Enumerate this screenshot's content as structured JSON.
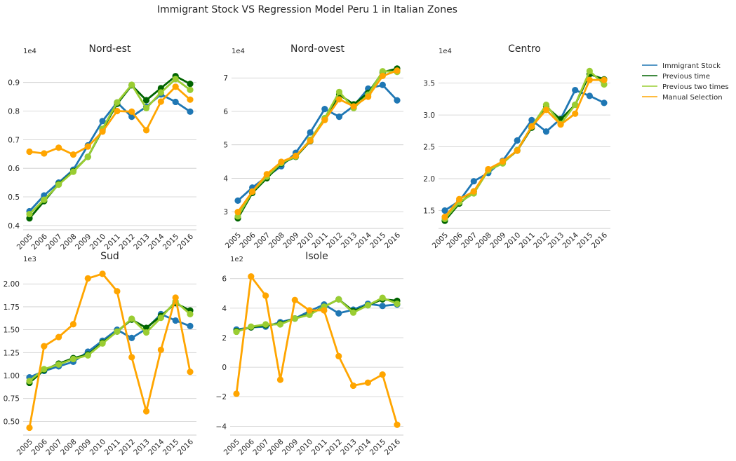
{
  "title": "Immigrant Stock VS Regression Model Peru 1 in Italian Zones",
  "legend": {
    "placement": "right",
    "entries": [
      {
        "label": "Immigrant Stock",
        "color": "#1f77b4"
      },
      {
        "label": "Previous time",
        "color": "#006400"
      },
      {
        "label": "Previous two times",
        "color": "#9acd32"
      },
      {
        "label": "Manual Selection",
        "color": "#ffa500"
      }
    ]
  },
  "chart_data": [
    {
      "type": "line",
      "title": "Nord-est",
      "multiplier": "1e4",
      "grid": "y",
      "x": [
        "2005",
        "2006",
        "2007",
        "2008",
        "2009",
        "2010",
        "2011",
        "2012",
        "2013",
        "2014",
        "2015",
        "2016"
      ],
      "ylim": [
        0.385,
        0.98
      ],
      "yticks": [
        0.4,
        0.5,
        0.6,
        0.7,
        0.8,
        0.9
      ],
      "ytick_labels": [
        "0.4",
        "0.5",
        "0.6",
        "0.7",
        "0.8",
        "0.9"
      ],
      "series": [
        {
          "name": "Immigrant Stock",
          "color": "#1f77b4",
          "values": [
            0.45,
            0.505,
            0.55,
            0.595,
            0.68,
            0.765,
            0.83,
            0.78,
            0.815,
            0.858,
            0.832,
            0.798
          ]
        },
        {
          "name": "Previous time",
          "color": "#006400",
          "values": [
            0.425,
            0.485,
            0.545,
            0.59,
            0.64,
            0.735,
            0.825,
            0.89,
            0.838,
            0.88,
            0.922,
            0.895
          ]
        },
        {
          "name": "Previous two times",
          "color": "#9acd32",
          "values": [
            0.44,
            0.49,
            0.543,
            0.588,
            0.64,
            0.738,
            0.83,
            0.892,
            0.81,
            0.865,
            0.912,
            0.874
          ]
        },
        {
          "name": "Manual Selection",
          "color": "#ffa500",
          "values": [
            0.658,
            0.652,
            0.672,
            0.648,
            0.676,
            0.728,
            0.8,
            0.798,
            0.733,
            0.833,
            0.885,
            0.84
          ]
        }
      ]
    },
    {
      "type": "line",
      "title": "Nord-ovest",
      "multiplier": "1e4",
      "grid": "y",
      "x": [
        "2005",
        "2006",
        "2007",
        "2008",
        "2009",
        "2010",
        "2011",
        "2012",
        "2013",
        "2014",
        "2015",
        "2016"
      ],
      "ylim": [
        2.5,
        7.55
      ],
      "yticks": [
        3,
        4,
        5,
        6,
        7
      ],
      "ytick_labels": [
        "3",
        "4",
        "5",
        "6",
        "7"
      ],
      "series": [
        {
          "name": "Immigrant Stock",
          "color": "#1f77b4",
          "values": [
            3.33,
            3.72,
            4.05,
            4.36,
            4.76,
            5.37,
            6.07,
            5.84,
            6.16,
            6.68,
            6.79,
            6.33
          ]
        },
        {
          "name": "Previous time",
          "color": "#006400",
          "values": [
            2.8,
            3.56,
            4.0,
            4.44,
            4.64,
            5.11,
            5.77,
            6.5,
            6.21,
            6.55,
            7.17,
            7.28
          ]
        },
        {
          "name": "Previous two times",
          "color": "#9acd32",
          "values": [
            2.86,
            3.6,
            4.05,
            4.46,
            4.65,
            5.15,
            5.8,
            6.58,
            6.1,
            6.5,
            7.2,
            7.18
          ]
        },
        {
          "name": "Manual Selection",
          "color": "#ffa500",
          "values": [
            2.99,
            3.6,
            4.12,
            4.49,
            4.67,
            5.12,
            5.74,
            6.36,
            6.15,
            6.44,
            7.06,
            7.22
          ]
        }
      ]
    },
    {
      "type": "line",
      "title": "Centro",
      "multiplier": "1e4",
      "grid": "y",
      "x": [
        "2005",
        "2006",
        "2007",
        "2008",
        "2009",
        "2010",
        "2011",
        "2012",
        "2013",
        "2014",
        "2015",
        "2016"
      ],
      "ylim": [
        1.22,
        3.87
      ],
      "yticks": [
        1.5,
        2.0,
        2.5,
        3.0,
        3.5
      ],
      "ytick_labels": [
        "1.5",
        "2.0",
        "2.5",
        "3.0",
        "3.5"
      ],
      "series": [
        {
          "name": "Immigrant Stock",
          "color": "#1f77b4",
          "values": [
            1.5,
            1.65,
            1.96,
            2.09,
            2.28,
            2.6,
            2.92,
            2.74,
            2.94,
            3.39,
            3.3,
            3.19
          ]
        },
        {
          "name": "Previous time",
          "color": "#006400",
          "values": [
            1.34,
            1.61,
            1.8,
            2.13,
            2.25,
            2.44,
            2.8,
            3.13,
            2.93,
            3.16,
            3.64,
            3.56
          ]
        },
        {
          "name": "Previous two times",
          "color": "#9acd32",
          "values": [
            1.37,
            1.63,
            1.77,
            2.13,
            2.24,
            2.45,
            2.82,
            3.16,
            2.86,
            3.16,
            3.69,
            3.48
          ]
        },
        {
          "name": "Manual Selection",
          "color": "#ffa500",
          "values": [
            1.4,
            1.68,
            1.8,
            2.15,
            2.27,
            2.44,
            2.82,
            3.08,
            2.85,
            3.02,
            3.55,
            3.55
          ]
        }
      ]
    },
    {
      "type": "line",
      "title": "Sud",
      "multiplier": "1e3",
      "grid": "y",
      "x": [
        "2005",
        "2006",
        "2007",
        "2008",
        "2009",
        "2010",
        "2011",
        "2012",
        "2013",
        "2014",
        "2015",
        "2016"
      ],
      "ylim": [
        0.35,
        2.17
      ],
      "yticks": [
        0.5,
        0.75,
        1.0,
        1.25,
        1.5,
        1.75,
        2.0
      ],
      "ytick_labels": [
        "0.50",
        "0.75",
        "1.00",
        "1.25",
        "1.50",
        "1.75",
        "2.00"
      ],
      "series": [
        {
          "name": "Immigrant Stock",
          "color": "#1f77b4",
          "values": [
            0.98,
            1.05,
            1.1,
            1.15,
            1.26,
            1.38,
            1.5,
            1.41,
            1.51,
            1.67,
            1.6,
            1.54
          ]
        },
        {
          "name": "Previous time",
          "color": "#006400",
          "values": [
            0.92,
            1.06,
            1.13,
            1.19,
            1.23,
            1.36,
            1.48,
            1.61,
            1.52,
            1.65,
            1.79,
            1.71
          ]
        },
        {
          "name": "Previous two times",
          "color": "#9acd32",
          "values": [
            0.94,
            1.07,
            1.12,
            1.18,
            1.22,
            1.35,
            1.48,
            1.62,
            1.47,
            1.63,
            1.81,
            1.67
          ]
        },
        {
          "name": "Manual Selection",
          "color": "#ffa500",
          "values": [
            0.43,
            1.32,
            1.42,
            1.56,
            2.06,
            2.11,
            1.92,
            1.2,
            0.61,
            1.28,
            1.85,
            1.04
          ]
        }
      ]
    },
    {
      "type": "line",
      "title": "Isole",
      "multiplier": "1e2",
      "grid": "y",
      "x": [
        "2005",
        "2006",
        "2007",
        "2008",
        "2009",
        "2010",
        "2011",
        "2012",
        "2013",
        "2014",
        "2015",
        "2016"
      ],
      "ylim": [
        -4.6,
        6.7
      ],
      "yticks": [
        -4,
        -2,
        0,
        2,
        4,
        6
      ],
      "ytick_labels": [
        "−4",
        "−2",
        "0",
        "2",
        "4",
        "6"
      ],
      "series": [
        {
          "name": "Immigrant Stock",
          "color": "#1f77b4",
          "values": [
            2.55,
            2.7,
            2.75,
            3.05,
            3.3,
            3.8,
            4.25,
            3.65,
            3.9,
            4.3,
            4.15,
            4.25
          ]
        },
        {
          "name": "Previous time",
          "color": "#006400",
          "values": [
            2.45,
            2.7,
            2.85,
            2.95,
            3.3,
            3.6,
            4.1,
            4.6,
            3.8,
            4.2,
            4.6,
            4.5
          ]
        },
        {
          "name": "Previous two times",
          "color": "#9acd32",
          "values": [
            2.4,
            2.75,
            2.9,
            2.9,
            3.3,
            3.55,
            4.1,
            4.6,
            3.7,
            4.2,
            4.7,
            4.3
          ]
        },
        {
          "name": "Manual Selection",
          "color": "#ffa500",
          "values": [
            -1.8,
            6.15,
            4.85,
            -0.85,
            4.55,
            3.85,
            3.85,
            0.75,
            -1.25,
            -1.05,
            -0.5,
            -3.9
          ]
        }
      ]
    }
  ]
}
